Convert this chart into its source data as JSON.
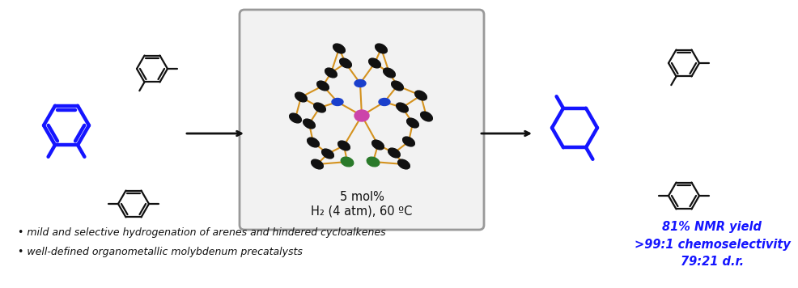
{
  "bg_color": "#ffffff",
  "box_color": "#aaaaaa",
  "box_fill": "#eeeeee",
  "blue_color": "#1515ff",
  "black_color": "#111111",
  "bond_color": "#D4921E",
  "text_bullet1": "• mild and selective hydrogenation of arenes and hindered cycloalkenes",
  "text_bullet2": "• well-defined organometallic molybdenum precatalysts",
  "text_yield1": "81% NMR yield",
  "text_yield2": ">99:1 chemoselectivity",
  "text_yield3": "79:21 d.r.",
  "text_mol_pct": "5 mol%",
  "text_conditions": "H₂ (4 atm), 60 ºC"
}
